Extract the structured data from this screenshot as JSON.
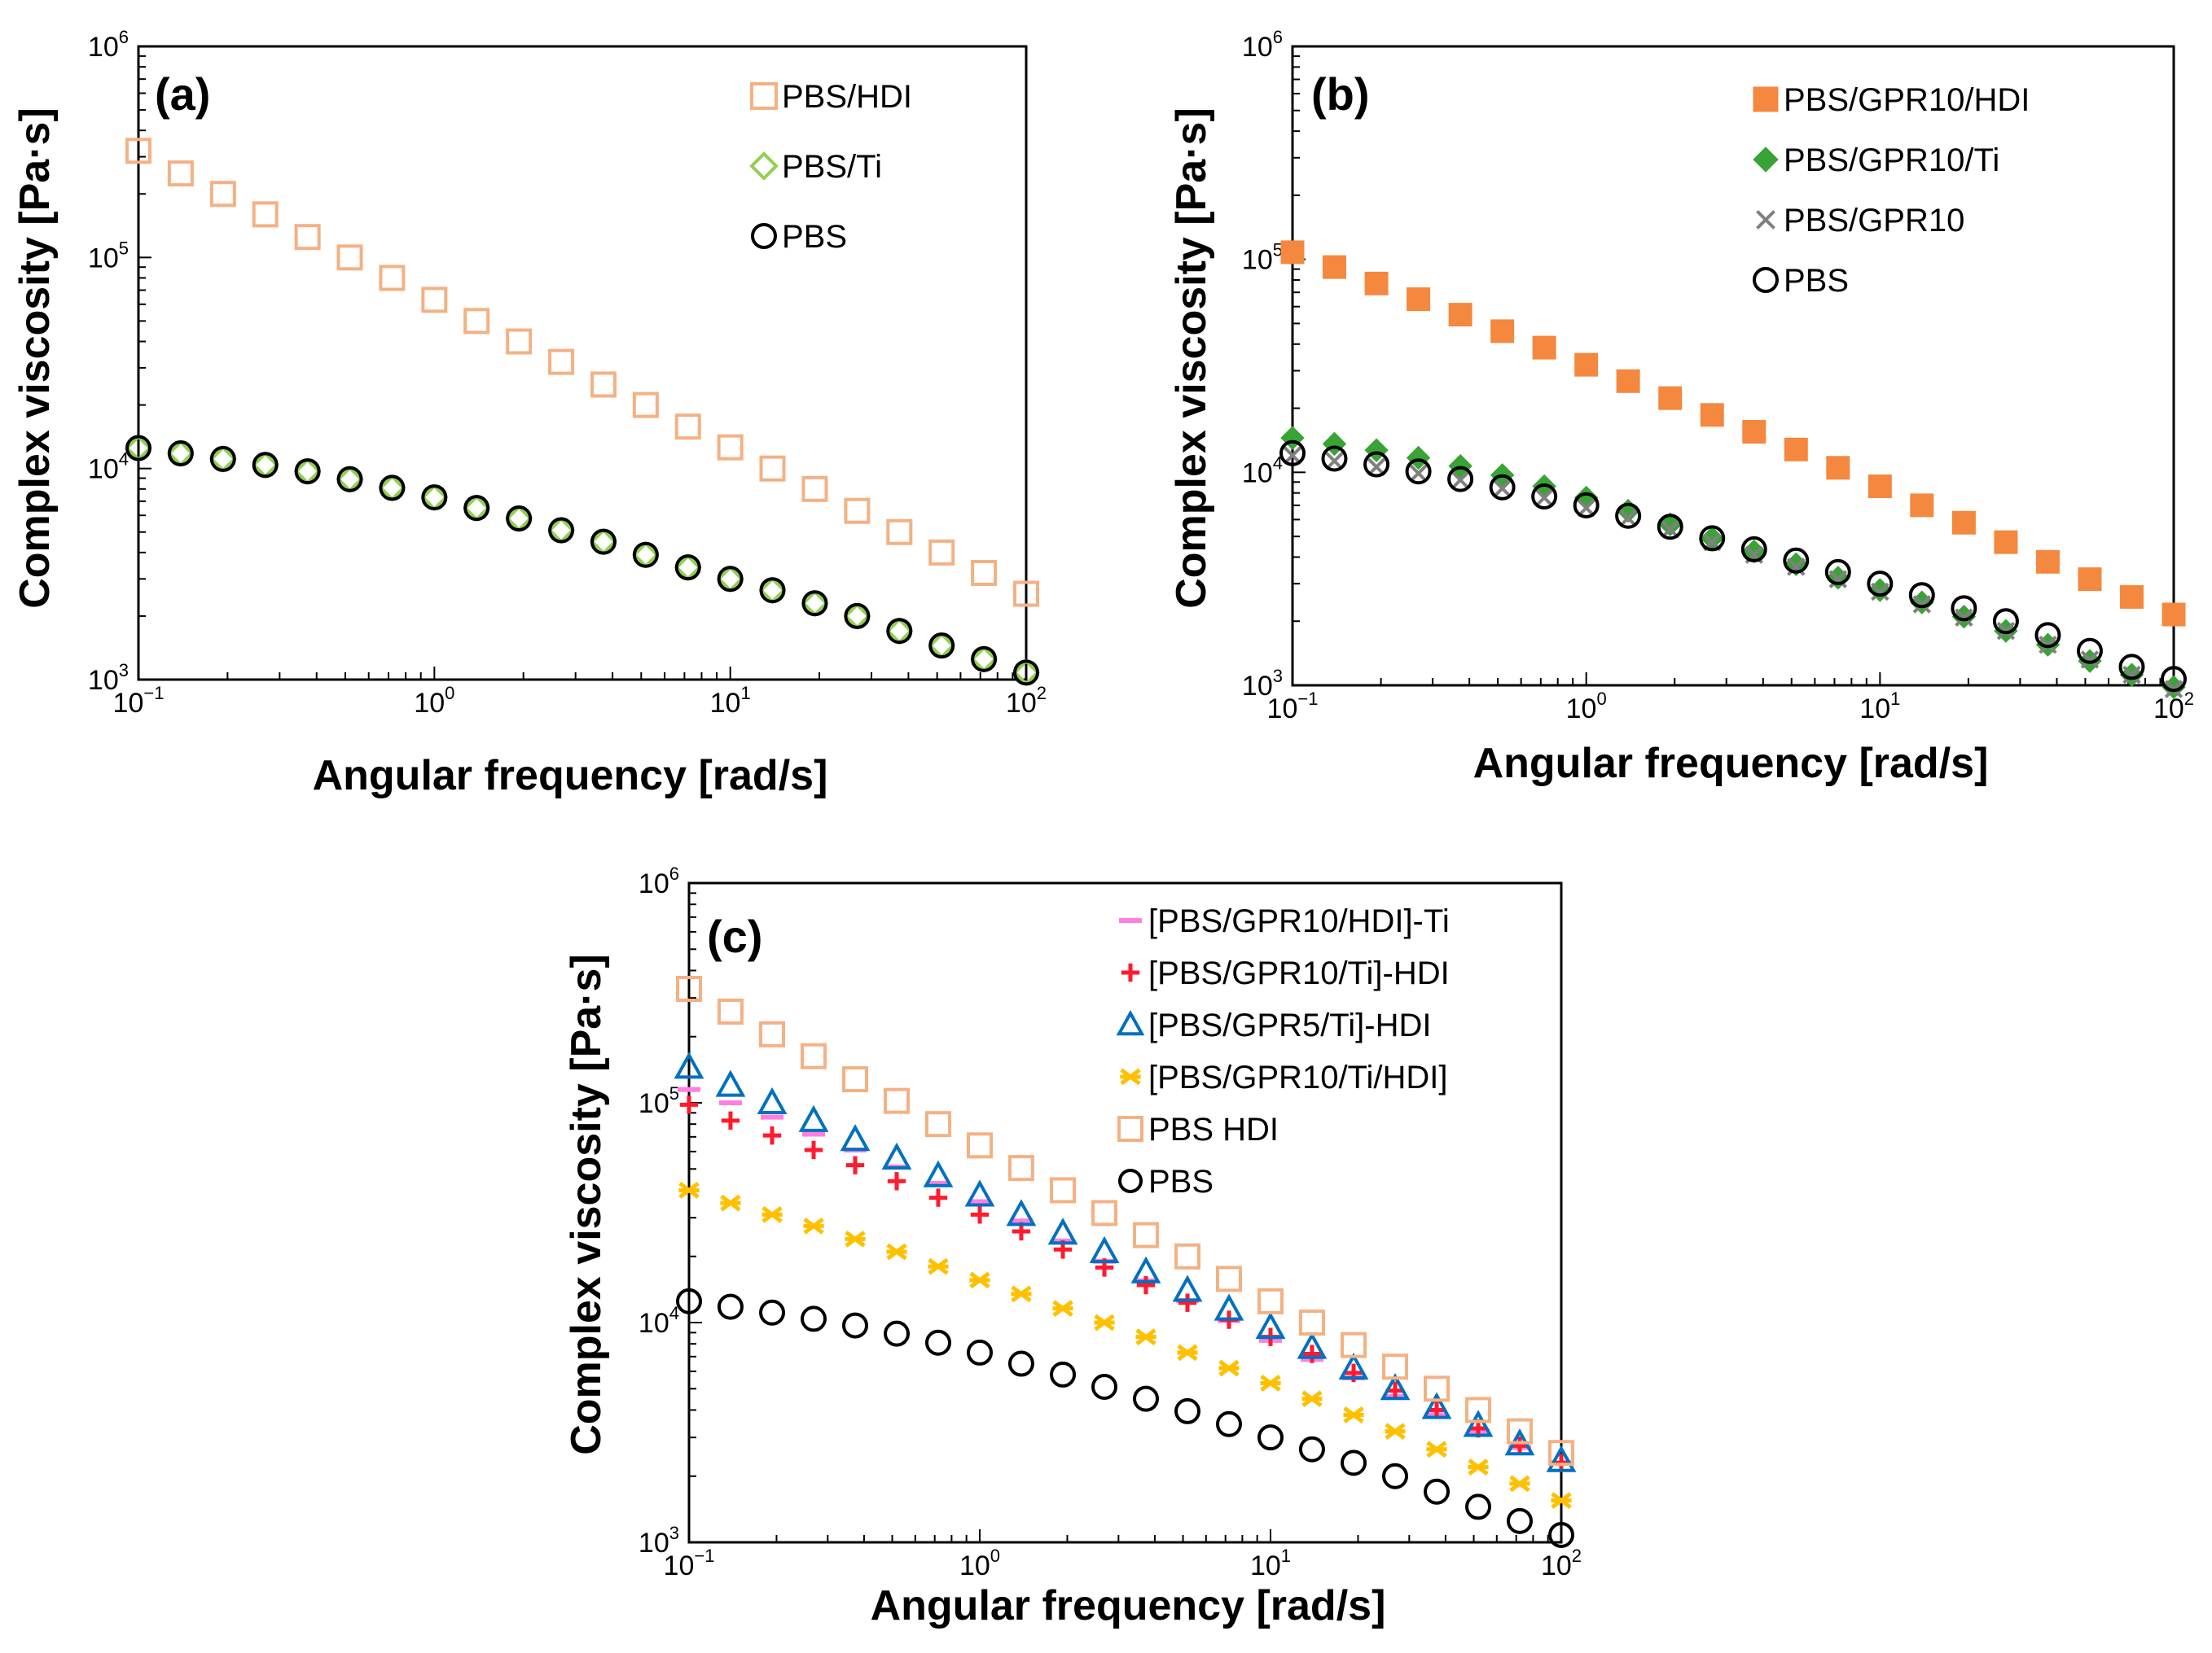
{
  "chart_data": [
    {
      "type": "scatter",
      "panel_label": "(a)",
      "xlabel": "Angular frequency [rad/s]",
      "ylabel": "Complex viscosity [Pa·s]",
      "xscale": "log",
      "yscale": "log",
      "xlim": [
        0.1,
        100
      ],
      "ylim": [
        1000,
        1000000
      ],
      "x_ticks": [
        {
          "base": "10",
          "exp": "−1",
          "value": 0.1
        },
        {
          "base": "10",
          "exp": "0",
          "value": 1
        },
        {
          "base": "10",
          "exp": "1",
          "value": 10
        },
        {
          "base": "10",
          "exp": "2",
          "value": 100
        }
      ],
      "y_ticks": [
        {
          "base": "10",
          "exp": "3",
          "value": 1000
        },
        {
          "base": "10",
          "exp": "4",
          "value": 10000
        },
        {
          "base": "10",
          "exp": "5",
          "value": 100000
        },
        {
          "base": "10",
          "exp": "6",
          "value": 1000000
        }
      ],
      "legend_position": "top-right",
      "x": [
        0.1,
        0.1389,
        0.1931,
        0.2683,
        0.3728,
        0.518,
        0.7197,
        1.0,
        1.389,
        1.931,
        2.683,
        3.728,
        5.18,
        7.197,
        10.0,
        13.89,
        19.31,
        26.83,
        37.28,
        51.8,
        71.97,
        100.0
      ],
      "series": [
        {
          "name": "PBS/HDI",
          "marker": "square-open",
          "color": "#F4B183",
          "values": [
            320000,
            250000,
            200000,
            160000,
            125000,
            100000,
            80000,
            63000,
            50000,
            40000,
            32000,
            25000,
            20000,
            15800,
            12600,
            10000,
            8000,
            6300,
            5000,
            4000,
            3200,
            2550
          ]
        },
        {
          "name": "PBS/Ti",
          "marker": "diamond-open",
          "color": "#92D050",
          "values": [
            12500,
            11800,
            11100,
            10400,
            9700,
            8900,
            8100,
            7300,
            6500,
            5800,
            5100,
            4500,
            3900,
            3400,
            3000,
            2650,
            2300,
            2000,
            1700,
            1450,
            1250,
            1080
          ]
        },
        {
          "name": "PBS",
          "marker": "circle-open",
          "color": "#000000",
          "values": [
            12500,
            11800,
            11100,
            10400,
            9700,
            8900,
            8100,
            7300,
            6500,
            5800,
            5100,
            4500,
            3900,
            3400,
            3000,
            2650,
            2300,
            2000,
            1700,
            1450,
            1250,
            1080
          ]
        }
      ]
    },
    {
      "type": "scatter",
      "panel_label": "(b)",
      "xlabel": "Angular frequency [rad/s]",
      "ylabel": "Complex viscosity [Pa·s]",
      "xscale": "log",
      "yscale": "log",
      "xlim": [
        0.1,
        100
      ],
      "ylim": [
        1000,
        1000000
      ],
      "x_ticks": [
        {
          "base": "10",
          "exp": "−1",
          "value": 0.1
        },
        {
          "base": "10",
          "exp": "0",
          "value": 1
        },
        {
          "base": "10",
          "exp": "1",
          "value": 10
        },
        {
          "base": "10",
          "exp": "2",
          "value": 100
        }
      ],
      "y_ticks": [
        {
          "base": "10",
          "exp": "3",
          "value": 1000
        },
        {
          "base": "10",
          "exp": "4",
          "value": 10000
        },
        {
          "base": "10",
          "exp": "5",
          "value": 100000
        },
        {
          "base": "10",
          "exp": "6",
          "value": 1000000
        }
      ],
      "legend_position": "top-right",
      "x": [
        0.1,
        0.1389,
        0.1931,
        0.2683,
        0.3728,
        0.518,
        0.7197,
        1.0,
        1.389,
        1.931,
        2.683,
        3.728,
        5.18,
        7.197,
        10.0,
        13.89,
        19.31,
        26.83,
        37.28,
        51.8,
        71.97,
        100.0
      ],
      "series": [
        {
          "name": "PBS/GPR10/HDI",
          "marker": "square-filled",
          "color": "#F4883F",
          "values": [
            108000,
            92000,
            77000,
            65000,
            55000,
            46000,
            38500,
            32000,
            26800,
            22300,
            18600,
            15500,
            12800,
            10500,
            8600,
            7000,
            5800,
            4700,
            3800,
            3150,
            2600,
            2150
          ]
        },
        {
          "name": "PBS/GPR10/Ti",
          "marker": "diamond-filled",
          "color": "#3AA335",
          "values": [
            14500,
            13600,
            12700,
            11700,
            10700,
            9700,
            8600,
            7600,
            6600,
            5700,
            4900,
            4250,
            3700,
            3200,
            2800,
            2450,
            2100,
            1800,
            1550,
            1300,
            1120,
            980
          ]
        },
        {
          "name": "PBS/GPR10",
          "marker": "x",
          "color": "#808080",
          "values": [
            12000,
            11300,
            10600,
            9900,
            9200,
            8400,
            7600,
            6800,
            6100,
            5400,
            4700,
            4100,
            3600,
            3150,
            2750,
            2400,
            2080,
            1800,
            1550,
            1320,
            1120,
            960
          ]
        },
        {
          "name": "PBS",
          "marker": "circle-open",
          "color": "#000000",
          "values": [
            12300,
            11600,
            10900,
            10100,
            9300,
            8500,
            7700,
            7000,
            6250,
            5550,
            4900,
            4350,
            3850,
            3400,
            3000,
            2650,
            2300,
            2000,
            1720,
            1450,
            1220,
            1070
          ]
        }
      ]
    },
    {
      "type": "scatter",
      "panel_label": "(c)",
      "xlabel": "Angular frequency [rad/s]",
      "ylabel": "Complex viscosity [Pa·s]",
      "xscale": "log",
      "yscale": "log",
      "xlim": [
        0.1,
        100
      ],
      "ylim": [
        1000,
        1000000
      ],
      "x_ticks": [
        {
          "base": "10",
          "exp": "−1",
          "value": 0.1
        },
        {
          "base": "10",
          "exp": "0",
          "value": 1
        },
        {
          "base": "10",
          "exp": "1",
          "value": 10
        },
        {
          "base": "10",
          "exp": "2",
          "value": 100
        }
      ],
      "y_ticks": [
        {
          "base": "10",
          "exp": "3",
          "value": 1000
        },
        {
          "base": "10",
          "exp": "4",
          "value": 10000
        },
        {
          "base": "10",
          "exp": "5",
          "value": 100000
        },
        {
          "base": "10",
          "exp": "6",
          "value": 1000000
        }
      ],
      "legend_position": "top-right",
      "x": [
        0.1,
        0.1389,
        0.1931,
        0.2683,
        0.3728,
        0.518,
        0.7197,
        1.0,
        1.389,
        1.931,
        2.683,
        3.728,
        5.18,
        7.197,
        10.0,
        13.89,
        19.31,
        26.83,
        37.28,
        51.8,
        71.97,
        100.0
      ],
      "series": [
        {
          "name": "[PBS/GPR10/HDI]-Ti",
          "marker": "dash",
          "color": "#FF7FE0",
          "values": [
            115000,
            100000,
            86000,
            72000,
            61000,
            51000,
            43000,
            35500,
            29000,
            23500,
            19000,
            15500,
            12600,
            10200,
            8300,
            6800,
            5600,
            4600,
            3800,
            3200,
            2700,
            2300
          ]
        },
        {
          "name": "[PBS/GPR10/Ti]-HDI",
          "marker": "plus",
          "color": "#FF1A2E",
          "values": [
            98000,
            83000,
            71000,
            61000,
            52000,
            44000,
            37000,
            31000,
            26000,
            21500,
            17800,
            14800,
            12300,
            10300,
            8600,
            7200,
            5900,
            4900,
            4000,
            3300,
            2750,
            2300
          ]
        },
        {
          "name": "[PBS/GPR5/Ti]-HDI",
          "marker": "triangle-open",
          "color": "#0070C0",
          "values": [
            145000,
            120000,
            100000,
            83000,
            68000,
            56000,
            46500,
            38000,
            31000,
            25500,
            21000,
            17000,
            14000,
            11500,
            9500,
            7700,
            6200,
            5000,
            4100,
            3400,
            2800,
            2350
          ]
        },
        {
          "name": "[PBS/GPR10/Ti/HDI]",
          "marker": "asterisk",
          "color": "#FFC000",
          "values": [
            40000,
            35000,
            31000,
            27500,
            24000,
            21000,
            18000,
            15600,
            13500,
            11600,
            10000,
            8600,
            7300,
            6200,
            5300,
            4500,
            3800,
            3200,
            2650,
            2200,
            1850,
            1550
          ]
        },
        {
          "name": "PBS HDI",
          "marker": "square-open",
          "color": "#F4B183",
          "values": [
            330000,
            260000,
            205000,
            163000,
            128000,
            102000,
            80000,
            64000,
            50500,
            40000,
            31500,
            25000,
            20000,
            15800,
            12500,
            10000,
            7900,
            6300,
            5000,
            4000,
            3200,
            2550
          ]
        },
        {
          "name": "PBS",
          "marker": "circle-open",
          "color": "#000000",
          "values": [
            12500,
            11800,
            11100,
            10400,
            9700,
            8900,
            8100,
            7300,
            6500,
            5800,
            5100,
            4500,
            3950,
            3450,
            3000,
            2650,
            2300,
            2000,
            1700,
            1450,
            1250,
            1080
          ]
        }
      ]
    }
  ]
}
